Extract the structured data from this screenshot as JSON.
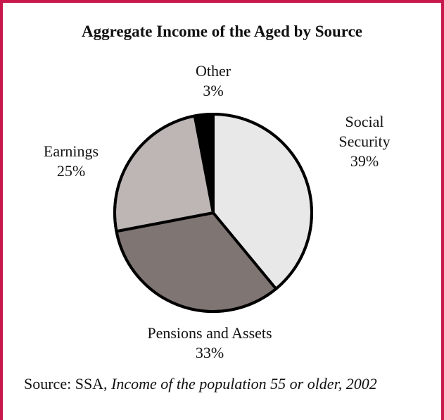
{
  "chart_data": {
    "type": "pie",
    "title": "Aggregate Income of the Aged by Source",
    "slices": [
      {
        "label_lines": [
          "Social",
          "Security"
        ],
        "value": 39,
        "value_label": "39%",
        "color": "#e8e8e8"
      },
      {
        "label_lines": [
          "Pensions and Assets"
        ],
        "value": 33,
        "value_label": "33%",
        "color": "#7f7572"
      },
      {
        "label_lines": [
          "Earnings"
        ],
        "value": 25,
        "value_label": "25%",
        "color": "#bdb6b5"
      },
      {
        "label_lines": [
          "Other"
        ],
        "value": 3,
        "value_label": "3%",
        "color": "#000000"
      }
    ],
    "legend": "none (labels placed beside slices)",
    "border_color": "#c8174b"
  },
  "source": {
    "prefix": "Source:  SSA, ",
    "work": "Income of the population 55 or older, 2002"
  }
}
